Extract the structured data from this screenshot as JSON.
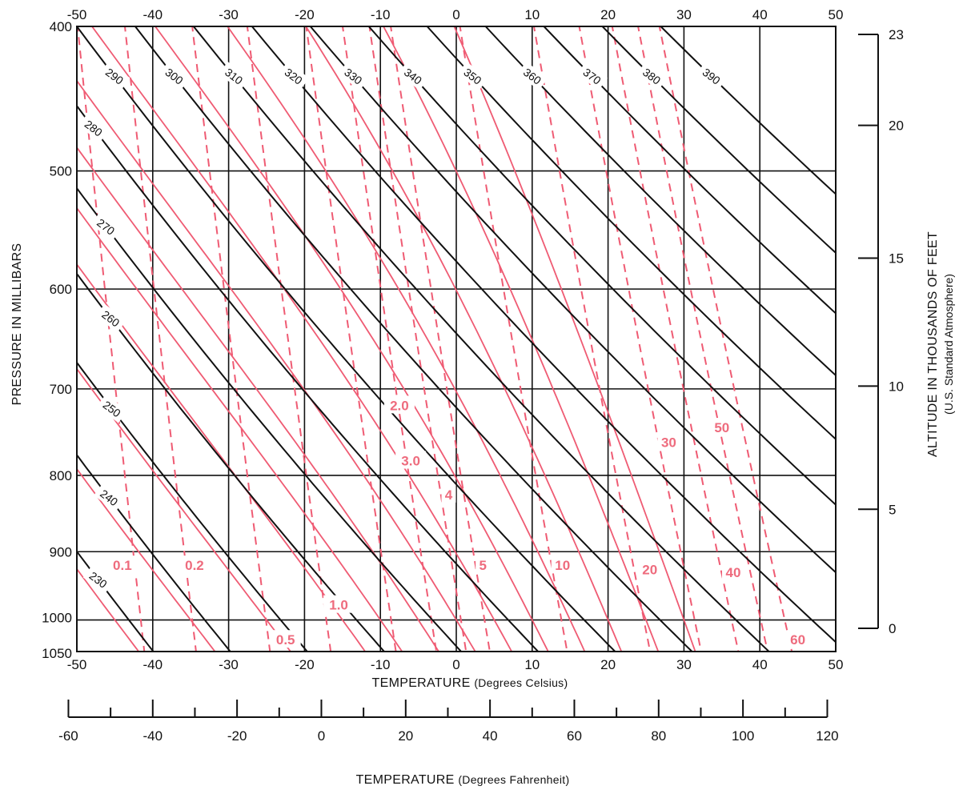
{
  "chart_data": {
    "type": "line",
    "title": "",
    "xlabel": "TEMPERATURE",
    "xlabel_units": "(Degrees Celsius)",
    "x2label": "TEMPERATURE",
    "x2label_units": "(Degrees Fahrenheit)",
    "ylabel": "PRESSURE IN MILLIBARS",
    "y2label": "ALTITUDE IN THOUSANDS OF FEET",
    "y2label_sub": "(U.S. Standard Atmosphere)",
    "xlim": [
      -50,
      50
    ],
    "ylim": [
      400,
      1050
    ],
    "y_scale": "log_inverted",
    "grid": true,
    "x_ticks": [
      "-50",
      "-40",
      "-30",
      "-20",
      "-10",
      "0",
      "10",
      "20",
      "30",
      "40",
      "50"
    ],
    "x_tick_values": [
      -50,
      -40,
      -30,
      -20,
      -10,
      0,
      10,
      20,
      30,
      40,
      50
    ],
    "y_ticks": [
      "400",
      "500",
      "600",
      "700",
      "800",
      "900",
      "1000",
      "1050"
    ],
    "y_tick_values": [
      400,
      500,
      600,
      700,
      800,
      900,
      1000,
      1050
    ],
    "fahrenheit_ticks": [
      "-60",
      "-40",
      "-20",
      "0",
      "20",
      "40",
      "60",
      "80",
      "100",
      "120"
    ],
    "fahrenheit_tick_values": [
      -60,
      -40,
      -20,
      0,
      20,
      40,
      60,
      80,
      100,
      120
    ],
    "altitude_ticks": [
      {
        "label": "23",
        "pressure": 405
      },
      {
        "label": "20",
        "pressure": 466
      },
      {
        "label": "15",
        "pressure": 572
      },
      {
        "label": "10",
        "pressure": 697
      },
      {
        "label": "5",
        "pressure": 843
      },
      {
        "label": "0",
        "pressure": 1013
      }
    ],
    "dry_adiabats_K": [
      230,
      240,
      250,
      260,
      270,
      280,
      290,
      300,
      310,
      320,
      330,
      340,
      350,
      360,
      370,
      380,
      390
    ],
    "saturation_adiabats_C": [
      -45,
      -35,
      -25,
      -15,
      -10,
      -5,
      0,
      5,
      10,
      15,
      20,
      25,
      30
    ],
    "mixing_ratio_labels": [
      {
        "label": "0.1",
        "value": 0.1,
        "x": -44,
        "p": 919
      },
      {
        "label": "0.2",
        "value": 0.2,
        "x": -34.5,
        "p": 919
      },
      {
        "label": "0.5",
        "value": 0.5,
        "x": -22.5,
        "p": 1031
      },
      {
        "label": "1.0",
        "value": 1.0,
        "x": -15.5,
        "p": 977
      },
      {
        "label": "2.0",
        "value": 2.0,
        "x": -7.5,
        "p": 718
      },
      {
        "label": "3.0",
        "value": 3.0,
        "x": -6,
        "p": 782
      },
      {
        "label": "4",
        "value": 4,
        "x": -1,
        "p": 824
      },
      {
        "label": "5",
        "value": 5,
        "x": 3.5,
        "p": 919
      },
      {
        "label": "10",
        "value": 10,
        "x": 14,
        "p": 919
      },
      {
        "label": "20",
        "value": 20,
        "x": 25.5,
        "p": 925
      },
      {
        "label": "30",
        "value": 30,
        "x": 28,
        "p": 760
      },
      {
        "label": "40",
        "value": 40,
        "x": 36.5,
        "p": 929
      },
      {
        "label": "50",
        "value": 50,
        "x": 35,
        "p": 743
      },
      {
        "label": "60",
        "value": 60,
        "x": 45,
        "p": 1031
      }
    ],
    "colors": {
      "grid": "#111111",
      "dry_adiabat": "#111111",
      "moist": "#ef5b73",
      "mixing_label": "#ee6b7d"
    }
  }
}
